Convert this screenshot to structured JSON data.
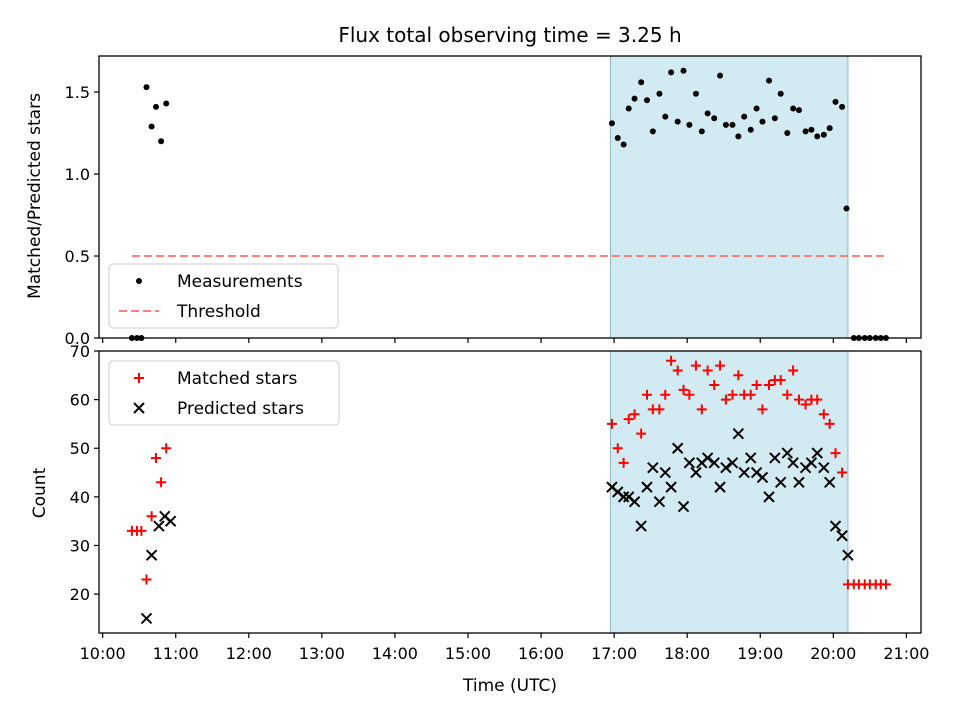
{
  "chart_data": [
    {
      "type": "scatter",
      "title": "Flux total observing time = 3.25 h",
      "ylabel": "Matched/Predicted stars",
      "xlabel": "",
      "x_unit": "decimal hours UTC",
      "xlim": [
        9.95,
        21.2
      ],
      "ylim": [
        0,
        1.72
      ],
      "yticks": [
        0.0,
        0.5,
        1.0,
        1.5
      ],
      "ytick_labels": [
        "0.0",
        "0.5",
        "1.0",
        "1.5"
      ],
      "shaded_region": {
        "x0": 16.95,
        "x1": 20.2,
        "color": "#add8e6"
      },
      "legend": {
        "location": "lower-left",
        "entries": [
          "Measurements",
          "Threshold"
        ]
      },
      "series": [
        {
          "name": "Measurements",
          "color": "#000000",
          "marker": "dot",
          "x": [
            10.4,
            10.47,
            10.53,
            10.6,
            10.67,
            10.73,
            10.8,
            10.87,
            10.93,
            16.97,
            17.05,
            17.13,
            17.2,
            17.28,
            17.37,
            17.45,
            17.53,
            17.62,
            17.7,
            17.78,
            17.87,
            17.95,
            18.03,
            18.12,
            18.2,
            18.28,
            18.37,
            18.45,
            18.53,
            18.62,
            18.7,
            18.78,
            18.87,
            18.95,
            19.03,
            19.12,
            19.2,
            19.28,
            19.37,
            19.45,
            19.53,
            19.62,
            19.7,
            19.78,
            19.87,
            19.95,
            20.03,
            20.12,
            20.18,
            20.28,
            20.35,
            20.43,
            20.5,
            20.58,
            20.65,
            20.72
          ],
          "y": [
            0.0,
            0.0,
            0.0,
            1.53,
            1.29,
            1.41,
            1.2,
            1.43,
            null,
            1.31,
            1.22,
            1.18,
            1.4,
            1.46,
            1.56,
            1.45,
            1.26,
            1.49,
            1.35,
            1.62,
            1.32,
            1.63,
            1.3,
            1.49,
            1.26,
            1.37,
            1.34,
            1.6,
            1.3,
            1.3,
            1.23,
            1.35,
            1.27,
            1.4,
            1.32,
            1.57,
            1.34,
            1.49,
            1.25,
            1.4,
            1.39,
            1.26,
            1.27,
            1.23,
            1.24,
            1.28,
            1.44,
            1.41,
            0.79,
            0.0,
            0.0,
            0.0,
            0.0,
            0.0,
            0.0,
            0.0
          ]
        },
        {
          "name": "Threshold",
          "color": "#ff7f7f",
          "style": "dashed",
          "x": [
            10.4,
            20.7
          ],
          "y": [
            0.5,
            0.5
          ]
        }
      ]
    },
    {
      "type": "scatter",
      "title": "",
      "ylabel": "Count",
      "xlabel": "Time (UTC)",
      "x_unit": "decimal hours UTC",
      "xlim": [
        9.95,
        21.2
      ],
      "ylim": [
        12,
        70
      ],
      "yticks": [
        20,
        30,
        40,
        50,
        60,
        70
      ],
      "ytick_labels": [
        "20",
        "30",
        "40",
        "50",
        "60",
        "70"
      ],
      "xticks": [
        10,
        11,
        12,
        13,
        14,
        15,
        16,
        17,
        18,
        19,
        20,
        21
      ],
      "xtick_labels": [
        "10:00",
        "11:00",
        "12:00",
        "13:00",
        "14:00",
        "15:00",
        "16:00",
        "17:00",
        "18:00",
        "19:00",
        "20:00",
        "21:00"
      ],
      "shaded_region": {
        "x0": 16.95,
        "x1": 20.2,
        "color": "#add8e6"
      },
      "legend": {
        "location": "top-left",
        "entries": [
          "Matched stars",
          "Predicted stars"
        ]
      },
      "series": [
        {
          "name": "Matched stars",
          "color": "#ff0000",
          "marker": "plus",
          "x": [
            10.4,
            10.47,
            10.53,
            10.6,
            10.67,
            10.73,
            10.8,
            10.87,
            10.93,
            16.97,
            17.05,
            17.13,
            17.2,
            17.28,
            17.37,
            17.45,
            17.53,
            17.62,
            17.7,
            17.78,
            17.87,
            17.95,
            18.03,
            18.12,
            18.2,
            18.28,
            18.37,
            18.45,
            18.53,
            18.62,
            18.7,
            18.78,
            18.87,
            18.95,
            19.03,
            19.12,
            19.2,
            19.28,
            19.37,
            19.45,
            19.53,
            19.62,
            19.7,
            19.78,
            19.87,
            19.95,
            20.03,
            20.12,
            20.2,
            20.28,
            20.35,
            20.43,
            20.5,
            20.58,
            20.65,
            20.72
          ],
          "y": [
            33,
            33,
            33,
            23,
            36,
            48,
            43,
            50,
            null,
            55,
            50,
            47,
            56,
            57,
            53,
            61,
            58,
            58,
            61,
            68,
            66,
            62,
            61,
            67,
            58,
            66,
            63,
            67,
            60,
            61,
            65,
            61,
            61,
            63,
            58,
            63,
            64,
            64,
            61,
            66,
            60,
            59,
            60,
            60,
            57,
            55,
            49,
            45,
            22,
            22,
            22,
            22,
            22,
            22,
            22,
            22
          ]
        },
        {
          "name": "Predicted stars",
          "color": "#000000",
          "marker": "x",
          "x": [
            10.6,
            10.67,
            10.77,
            10.85,
            10.93,
            16.97,
            17.05,
            17.13,
            17.2,
            17.28,
            17.37,
            17.45,
            17.53,
            17.62,
            17.7,
            17.78,
            17.87,
            17.95,
            18.03,
            18.12,
            18.2,
            18.28,
            18.37,
            18.45,
            18.53,
            18.62,
            18.7,
            18.78,
            18.87,
            18.95,
            19.03,
            19.12,
            19.2,
            19.28,
            19.37,
            19.45,
            19.53,
            19.62,
            19.7,
            19.78,
            19.87,
            19.95,
            20.03,
            20.12,
            20.2
          ],
          "y": [
            15,
            28,
            34,
            36,
            35,
            42,
            41,
            40,
            40,
            39,
            34,
            42,
            46,
            39,
            45,
            42,
            50,
            38,
            47,
            45,
            47,
            48,
            47,
            42,
            46,
            47,
            53,
            45,
            48,
            45,
            44,
            40,
            48,
            43,
            49,
            47,
            43,
            46,
            47,
            49,
            46,
            43,
            34,
            32,
            28
          ]
        }
      ]
    }
  ]
}
